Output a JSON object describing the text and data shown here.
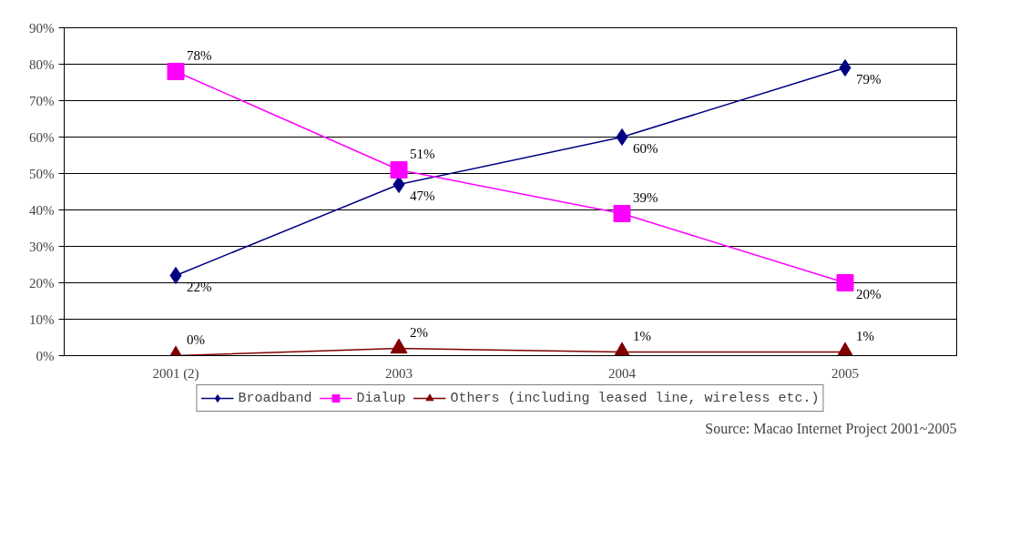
{
  "chart_data": {
    "type": "line",
    "categories": [
      "2001 (2)",
      "2003",
      "2004",
      "2005"
    ],
    "series": [
      {
        "name": "Broadband",
        "color": "#000080",
        "marker": "diamond",
        "values": [
          22,
          47,
          60,
          79
        ],
        "value_labels": [
          "22%",
          "47%",
          "60%",
          "79%"
        ]
      },
      {
        "name": "Dialup",
        "color": "#ff00ff",
        "marker": "square",
        "values": [
          78,
          51,
          39,
          20
        ],
        "value_labels": [
          "78%",
          "51%",
          "39%",
          "20%"
        ]
      },
      {
        "name": "Others (including leased line, wireless etc.)",
        "color": "#800000",
        "marker": "triangle",
        "values": [
          0,
          2,
          1,
          1
        ],
        "value_labels": [
          "0%",
          "2%",
          "1%",
          "1%"
        ]
      }
    ],
    "ylim": [
      0,
      90
    ],
    "yticks": [
      {
        "value": 0,
        "label": "0%"
      },
      {
        "value": 10,
        "label": "10%"
      },
      {
        "value": 20,
        "label": "20%"
      },
      {
        "value": 30,
        "label": "30%"
      },
      {
        "value": 40,
        "label": "40%"
      },
      {
        "value": 50,
        "label": "50%"
      },
      {
        "value": 60,
        "label": "60%"
      },
      {
        "value": 70,
        "label": "70%"
      },
      {
        "value": 80,
        "label": "80%"
      },
      {
        "value": 90,
        "label": "90%"
      }
    ],
    "grid": "y",
    "legend": "bottom",
    "annotations": [
      "Source: Macao Internet Project 2001~2005"
    ]
  }
}
